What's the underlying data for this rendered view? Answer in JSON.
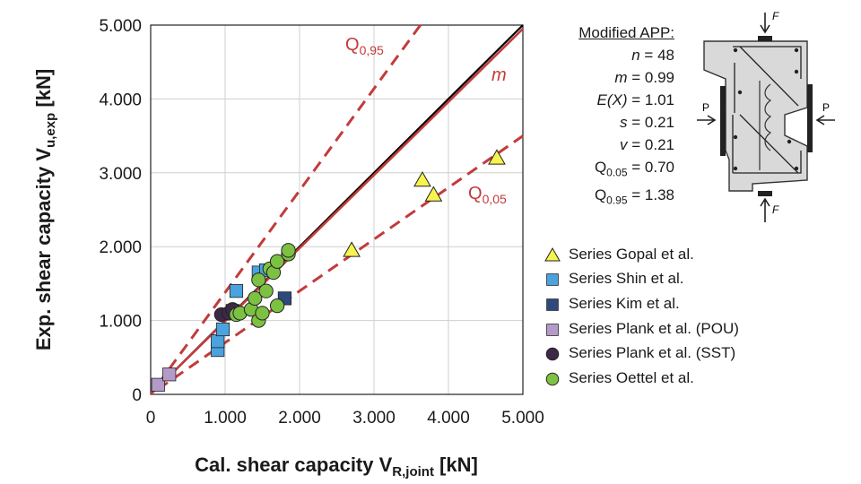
{
  "chart_data": {
    "type": "scatter",
    "title": "",
    "xlabel_main": "Cal. shear capacity V",
    "xlabel_sub": "R,joint",
    "xlabel_unit": " [kN]",
    "ylabel_main": "Exp. shear capacity V",
    "ylabel_sub": "u,exp",
    "ylabel_unit": " [kN]",
    "xlim": [
      0,
      5000
    ],
    "ylim": [
      0,
      5000
    ],
    "xticks": [
      "0",
      "1.000",
      "2.000",
      "3.000",
      "4.000",
      "5.000"
    ],
    "yticks": [
      "0",
      "1.000",
      "2.000",
      "3.000",
      "4.000",
      "5.000"
    ],
    "grid": true,
    "lines": [
      {
        "label": "",
        "slope": 1.0,
        "color": "#000000",
        "style": "solid"
      },
      {
        "label": "m",
        "slope": 0.99,
        "color": "#c23b3b",
        "style": "solid"
      },
      {
        "label": "Q",
        "label_sub": "0,95",
        "slope": 1.38,
        "color": "#c23b3b",
        "style": "dashed"
      },
      {
        "label": "Q",
        "label_sub": "0,05",
        "slope": 0.7,
        "color": "#c23b3b",
        "style": "dashed"
      }
    ],
    "series": [
      {
        "name": "Series Gopal et al.",
        "marker": "triangle",
        "color": "#f7f34f",
        "points": [
          [
            2700,
            1950
          ],
          [
            3650,
            2900
          ],
          [
            3800,
            2700
          ],
          [
            4650,
            3200
          ]
        ]
      },
      {
        "name": "Series Shin et al.",
        "marker": "square",
        "color": "#4aa3df",
        "points": [
          [
            900,
            600
          ],
          [
            900,
            720
          ],
          [
            970,
            880
          ],
          [
            1150,
            1400
          ],
          [
            1450,
            1650
          ],
          [
            1550,
            1680
          ]
        ]
      },
      {
        "name": "Series Kim et al.",
        "marker": "square",
        "color": "#2e4a7d",
        "points": [
          [
            1100,
            1130
          ],
          [
            1800,
            1300
          ]
        ]
      },
      {
        "name": "Series Plank et al. (POU)",
        "marker": "square",
        "color": "#b49ac9",
        "points": [
          [
            100,
            130
          ],
          [
            250,
            270
          ]
        ]
      },
      {
        "name": "Series Plank et al. (SST)",
        "marker": "circle",
        "color": "#3d2847",
        "points": [
          [
            950,
            1080
          ],
          [
            1050,
            1100
          ],
          [
            1100,
            1150
          ]
        ]
      },
      {
        "name": "Series Oettel et al.",
        "marker": "circle",
        "color": "#7cc142",
        "points": [
          [
            1150,
            1080
          ],
          [
            1200,
            1100
          ],
          [
            1350,
            1150
          ],
          [
            1400,
            1300
          ],
          [
            1450,
            1000
          ],
          [
            1500,
            1100
          ],
          [
            1450,
            1550
          ],
          [
            1550,
            1400
          ],
          [
            1600,
            1700
          ],
          [
            1650,
            1650
          ],
          [
            1700,
            1800
          ],
          [
            1700,
            1200
          ],
          [
            1850,
            1900
          ],
          [
            1850,
            1950
          ]
        ]
      }
    ],
    "stats": {
      "title": "Modified APP:",
      "rows": [
        {
          "lhs": "n",
          "italic": true,
          "rhs": " = 48"
        },
        {
          "lhs": "m",
          "italic": true,
          "rhs": " = 0.99"
        },
        {
          "lhs": "E(X)",
          "italic": true,
          "rhs": " = 1.01"
        },
        {
          "lhs": "s",
          "italic": true,
          "rhs": " = 0.21"
        },
        {
          "lhs": "v",
          "italic": true,
          "rhs": " = 0.21"
        },
        {
          "lhs": "Q",
          "sub": "0.05",
          "rhs": " = 0.70"
        },
        {
          "lhs": "Q",
          "sub": "0.95",
          "rhs": " = 1.38"
        }
      ]
    },
    "diagram": {
      "force_top": "F",
      "force_bottom": "F",
      "force_left": "P",
      "force_right": "P"
    }
  }
}
